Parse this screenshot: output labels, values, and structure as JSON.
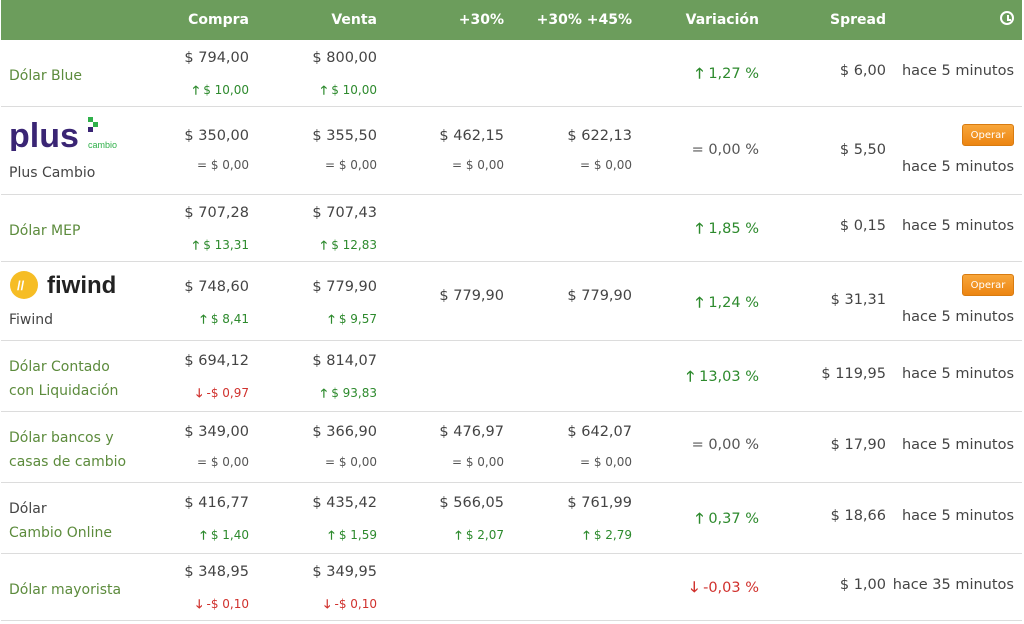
{
  "header": {
    "compra": "Compra",
    "venta": "Venta",
    "plus30": "+30%",
    "plus30_45": "+30% +45%",
    "variacion": "Variación",
    "spread": "Spread",
    "time_icon": "clock-icon"
  },
  "rows": [
    {
      "name": "Dólar Blue",
      "compra": "$ 794,00",
      "compra_chg": "$ 10,00",
      "venta": "$ 800,00",
      "venta_chg": "$ 10,00",
      "variacion": "1,27 %",
      "spread": "$ 6,00",
      "time": "hace 5 minutos"
    },
    {
      "logo_text": "plus",
      "logo_sub": "cambio",
      "name": "Plus Cambio",
      "compra": "$ 350,00",
      "compra_chg": "= $ 0,00",
      "venta": "$ 355,50",
      "venta_chg": "= $ 0,00",
      "p30": "$ 462,15",
      "p30_chg": "= $ 0,00",
      "p3045": "$ 622,13",
      "p3045_chg": "= $ 0,00",
      "variacion": "= 0,00 %",
      "spread": "$ 5,50",
      "button": "Operar",
      "time": "hace 5 minutos"
    },
    {
      "name": "Dólar MEP",
      "compra": "$ 707,28",
      "compra_chg": "$ 13,31",
      "venta": "$ 707,43",
      "venta_chg": "$ 12,83",
      "variacion": "1,85 %",
      "spread": "$ 0,15",
      "time": "hace 5 minutos"
    },
    {
      "logo_text": "fiwind",
      "name": "Fiwind",
      "compra": "$ 748,60",
      "compra_chg": "$ 8,41",
      "venta": "$ 779,90",
      "venta_chg": "$ 9,57",
      "p30": "$ 779,90",
      "p3045": "$ 779,90",
      "variacion": "1,24 %",
      "spread": "$ 31,31",
      "button": "Operar",
      "time": "hace 5 minutos"
    },
    {
      "name_line1": "Dólar Contado",
      "name_line2": "con Liquidación",
      "compra": "$ 694,12",
      "compra_chg": "-$ 0,97",
      "venta": "$ 814,07",
      "venta_chg": "$ 93,83",
      "variacion": "13,03 %",
      "spread": "$ 119,95",
      "time": "hace 5 minutos"
    },
    {
      "name_line1": "Dólar bancos y",
      "name_line2": "casas de cambio",
      "compra": "$ 349,00",
      "compra_chg": "= $ 0,00",
      "venta": "$ 366,90",
      "venta_chg": "= $ 0,00",
      "p30": "$ 476,97",
      "p30_chg": "= $ 0,00",
      "p3045": "$ 642,07",
      "p3045_chg": "= $ 0,00",
      "variacion": "= 0,00 %",
      "spread": "$ 17,90",
      "time": "hace 5 minutos"
    },
    {
      "name_line1": "Dólar",
      "name_line2": "Cambio Online",
      "compra": "$ 416,77",
      "compra_chg": "$ 1,40",
      "venta": "$ 435,42",
      "venta_chg": "$ 1,59",
      "p30": "$ 566,05",
      "p30_chg": "$ 2,07",
      "p3045": "$ 761,99",
      "p3045_chg": "$ 2,79",
      "variacion": "0,37 %",
      "spread": "$ 18,66",
      "time": "hace 5 minutos"
    },
    {
      "name": "Dólar mayorista",
      "compra": "$ 348,95",
      "compra_chg": "-$ 0,10",
      "venta": "$ 349,95",
      "venta_chg": "-$ 0,10",
      "variacion": "-0,03 %",
      "spread": "$ 1,00",
      "time": "hace 35 minutos"
    }
  ],
  "colors": {
    "header_bg": "#6c9d5c",
    "up": "#2d8a2d",
    "down": "#d0312d",
    "button": "#f39a25",
    "name": "#5c8b3c"
  }
}
